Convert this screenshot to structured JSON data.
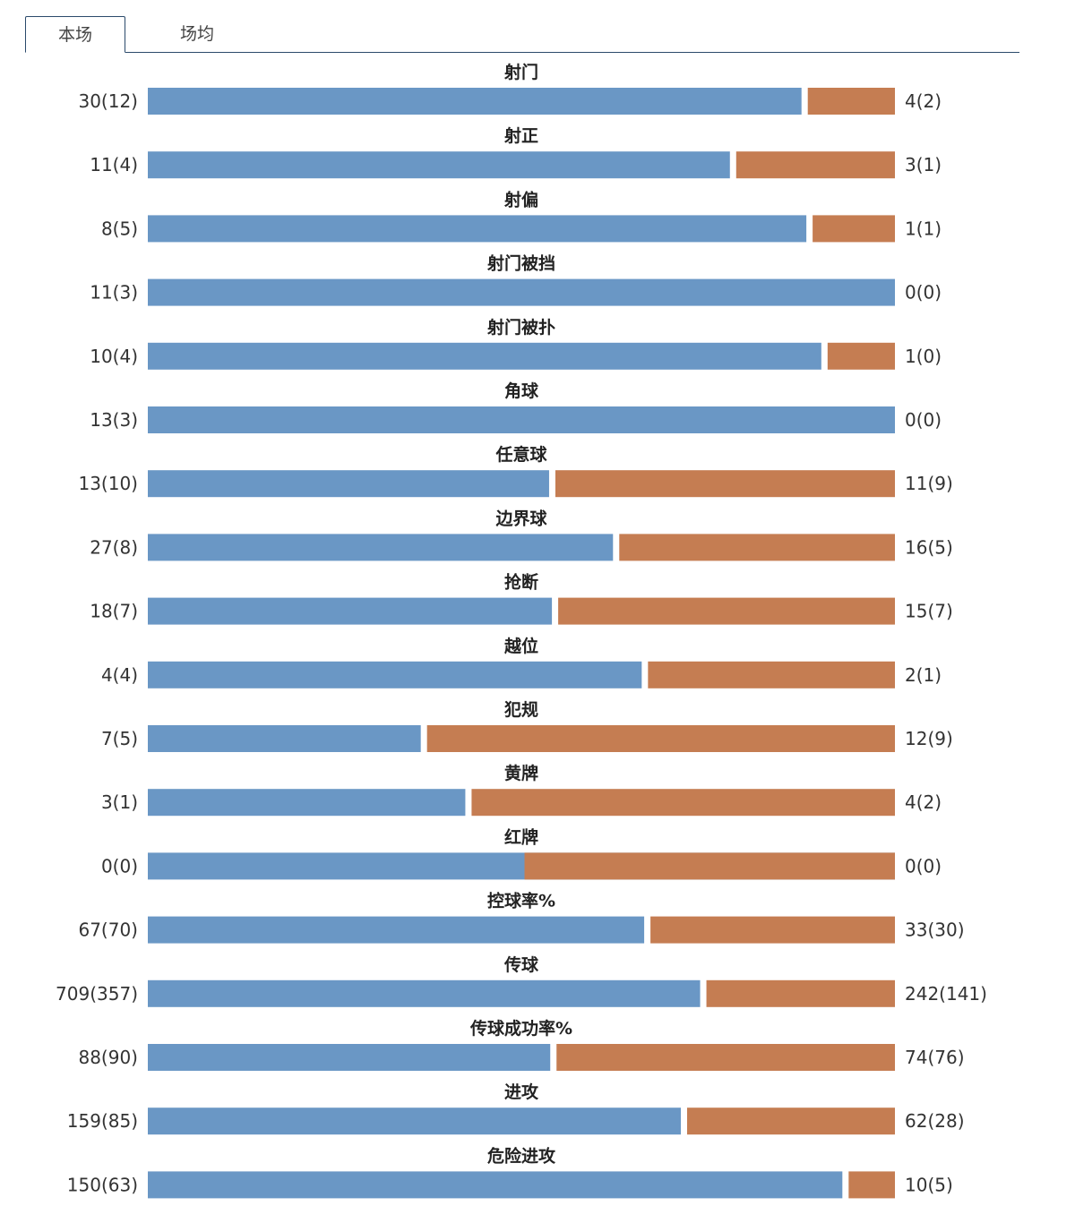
{
  "tabs": [
    {
      "label": "本场",
      "active": true
    },
    {
      "label": "场均",
      "active": false
    }
  ],
  "colors": {
    "left_bar": "#6a97c5",
    "right_bar": "#c57d52"
  },
  "chart_data": {
    "type": "bar",
    "orientation": "horizontal-split",
    "rows": [
      {
        "label": "射门",
        "left": 30,
        "left_sub": 12,
        "right": 4,
        "right_sub": 2,
        "left_text": "30(12)",
        "right_text": "4(2)"
      },
      {
        "label": "射正",
        "left": 11,
        "left_sub": 4,
        "right": 3,
        "right_sub": 1,
        "left_text": "11(4)",
        "right_text": "3(1)"
      },
      {
        "label": "射偏",
        "left": 8,
        "left_sub": 5,
        "right": 1,
        "right_sub": 1,
        "left_text": "8(5)",
        "right_text": "1(1)"
      },
      {
        "label": "射门被挡",
        "left": 11,
        "left_sub": 3,
        "right": 0,
        "right_sub": 0,
        "left_text": "11(3)",
        "right_text": "0(0)"
      },
      {
        "label": "射门被扑",
        "left": 10,
        "left_sub": 4,
        "right": 1,
        "right_sub": 0,
        "left_text": "10(4)",
        "right_text": "1(0)"
      },
      {
        "label": "角球",
        "left": 13,
        "left_sub": 3,
        "right": 0,
        "right_sub": 0,
        "left_text": "13(3)",
        "right_text": "0(0)"
      },
      {
        "label": "任意球",
        "left": 13,
        "left_sub": 10,
        "right": 11,
        "right_sub": 9,
        "left_text": "13(10)",
        "right_text": "11(9)"
      },
      {
        "label": "边界球",
        "left": 27,
        "left_sub": 8,
        "right": 16,
        "right_sub": 5,
        "left_text": "27(8)",
        "right_text": "16(5)"
      },
      {
        "label": "抢断",
        "left": 18,
        "left_sub": 7,
        "right": 15,
        "right_sub": 7,
        "left_text": "18(7)",
        "right_text": "15(7)"
      },
      {
        "label": "越位",
        "left": 4,
        "left_sub": 4,
        "right": 2,
        "right_sub": 1,
        "left_text": "4(4)",
        "right_text": "2(1)"
      },
      {
        "label": "犯规",
        "left": 7,
        "left_sub": 5,
        "right": 12,
        "right_sub": 9,
        "left_text": "7(5)",
        "right_text": "12(9)"
      },
      {
        "label": "黄牌",
        "left": 3,
        "left_sub": 1,
        "right": 4,
        "right_sub": 2,
        "left_text": "3(1)",
        "right_text": "4(2)"
      },
      {
        "label": "红牌",
        "left": 0,
        "left_sub": 0,
        "right": 0,
        "right_sub": 0,
        "left_text": "0(0)",
        "right_text": "0(0)"
      },
      {
        "label": "控球率%",
        "left": 67,
        "left_sub": 70,
        "right": 33,
        "right_sub": 30,
        "left_text": "67(70)",
        "right_text": "33(30)"
      },
      {
        "label": "传球",
        "left": 709,
        "left_sub": 357,
        "right": 242,
        "right_sub": 141,
        "left_text": "709(357)",
        "right_text": "242(141)"
      },
      {
        "label": "传球成功率%",
        "left": 88,
        "left_sub": 90,
        "right": 74,
        "right_sub": 76,
        "left_text": "88(90)",
        "right_text": "74(76)"
      },
      {
        "label": "进攻",
        "left": 159,
        "left_sub": 85,
        "right": 62,
        "right_sub": 28,
        "left_text": "159(85)",
        "right_text": "62(28)"
      },
      {
        "label": "危险进攻",
        "left": 150,
        "left_sub": 63,
        "right": 10,
        "right_sub": 5,
        "left_text": "150(63)",
        "right_text": "10(5)"
      }
    ]
  }
}
